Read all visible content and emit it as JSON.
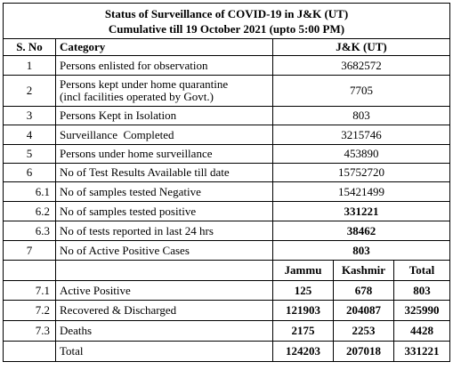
{
  "report": {
    "title_line1": "Status of Surveillance of COVID-19 in J&K (UT)",
    "title_line2": "Cumulative till 19 October 2021 (upto 5:00 PM)"
  },
  "header": {
    "sno": "S. No",
    "category": "Category",
    "value": "J&K (UT)"
  },
  "rows": [
    {
      "sno": "1",
      "category": "Persons enlisted for observation",
      "value": "3682572"
    },
    {
      "sno": "2",
      "category": "Persons kept under home quarantine",
      "category2": "(incl facilities operated by Govt.)",
      "value": "7705"
    },
    {
      "sno": "3",
      "category": "Persons Kept in Isolation",
      "value": "803"
    },
    {
      "sno": "4",
      "category": "Surveillance  Completed",
      "value": "3215746"
    },
    {
      "sno": "5",
      "category": "Persons under home surveillance",
      "value": "453890"
    },
    {
      "sno": "6",
      "category": "No of Test Results Available till date",
      "value": "15752720"
    },
    {
      "sno": "6.1",
      "category": "No of samples tested Negative",
      "value": "15421499"
    },
    {
      "sno": "6.2",
      "category": "No of samples tested positive",
      "value": "331221"
    },
    {
      "sno": "6.3",
      "category": "No of tests reported in last 24 hrs",
      "value": "38462"
    },
    {
      "sno": "7",
      "category": "No of Active Positive Cases",
      "value": "803"
    }
  ],
  "breakdown": {
    "columns": [
      "Jammu",
      "Kashmir",
      "Total"
    ],
    "rows": [
      {
        "sno": "7.1",
        "category": "Active Positive",
        "values": [
          "125",
          "678",
          "803"
        ]
      },
      {
        "sno": "7.2",
        "category": "Recovered & Discharged",
        "values": [
          "121903",
          "204087",
          "325990"
        ]
      },
      {
        "sno": "7.3",
        "category": "Deaths",
        "values": [
          "2175",
          "2253",
          "4428"
        ]
      },
      {
        "sno": "",
        "category": "Total",
        "values": [
          "124203",
          "207018",
          "331221"
        ]
      }
    ]
  }
}
